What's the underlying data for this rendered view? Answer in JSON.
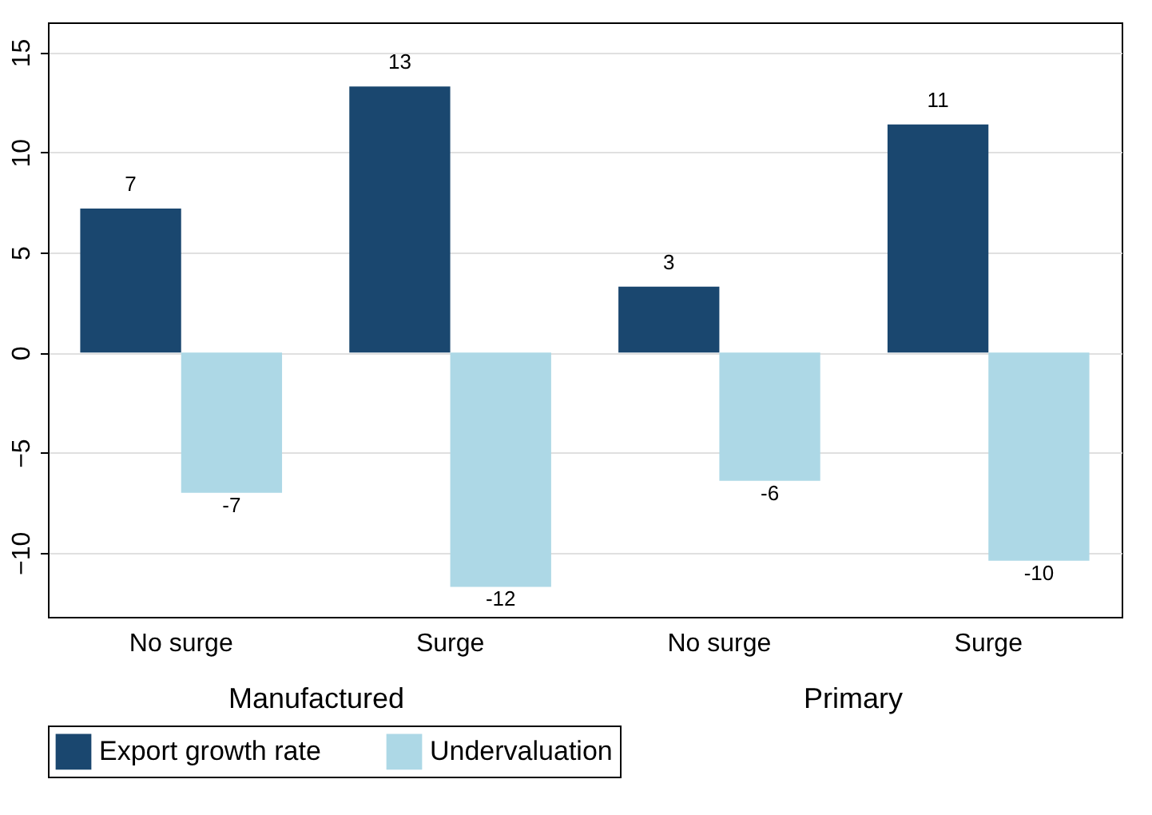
{
  "chart_data": {
    "type": "bar",
    "categories": [
      "No surge",
      "Surge",
      "No surge",
      "Surge"
    ],
    "series": [
      {
        "name": "Export growth rate",
        "color": "#1a476f",
        "values": [
          7.2,
          13.3,
          3.3,
          11.4
        ],
        "value_labels": [
          "7",
          "13",
          "3",
          "11"
        ]
      },
      {
        "name": "Undervaluation",
        "color": "#add8e6",
        "values": [
          -7.0,
          -11.7,
          -6.4,
          -10.4
        ],
        "value_labels": [
          "-7",
          "-12",
          "-6",
          "-10"
        ]
      }
    ],
    "annotations": [
      "Manufactured",
      "Primary"
    ],
    "ylim": [
      -13.2,
      16.5
    ],
    "yticks": [
      -10,
      -5,
      0,
      5,
      10,
      15
    ],
    "grid": "y",
    "legend": "bottom"
  }
}
